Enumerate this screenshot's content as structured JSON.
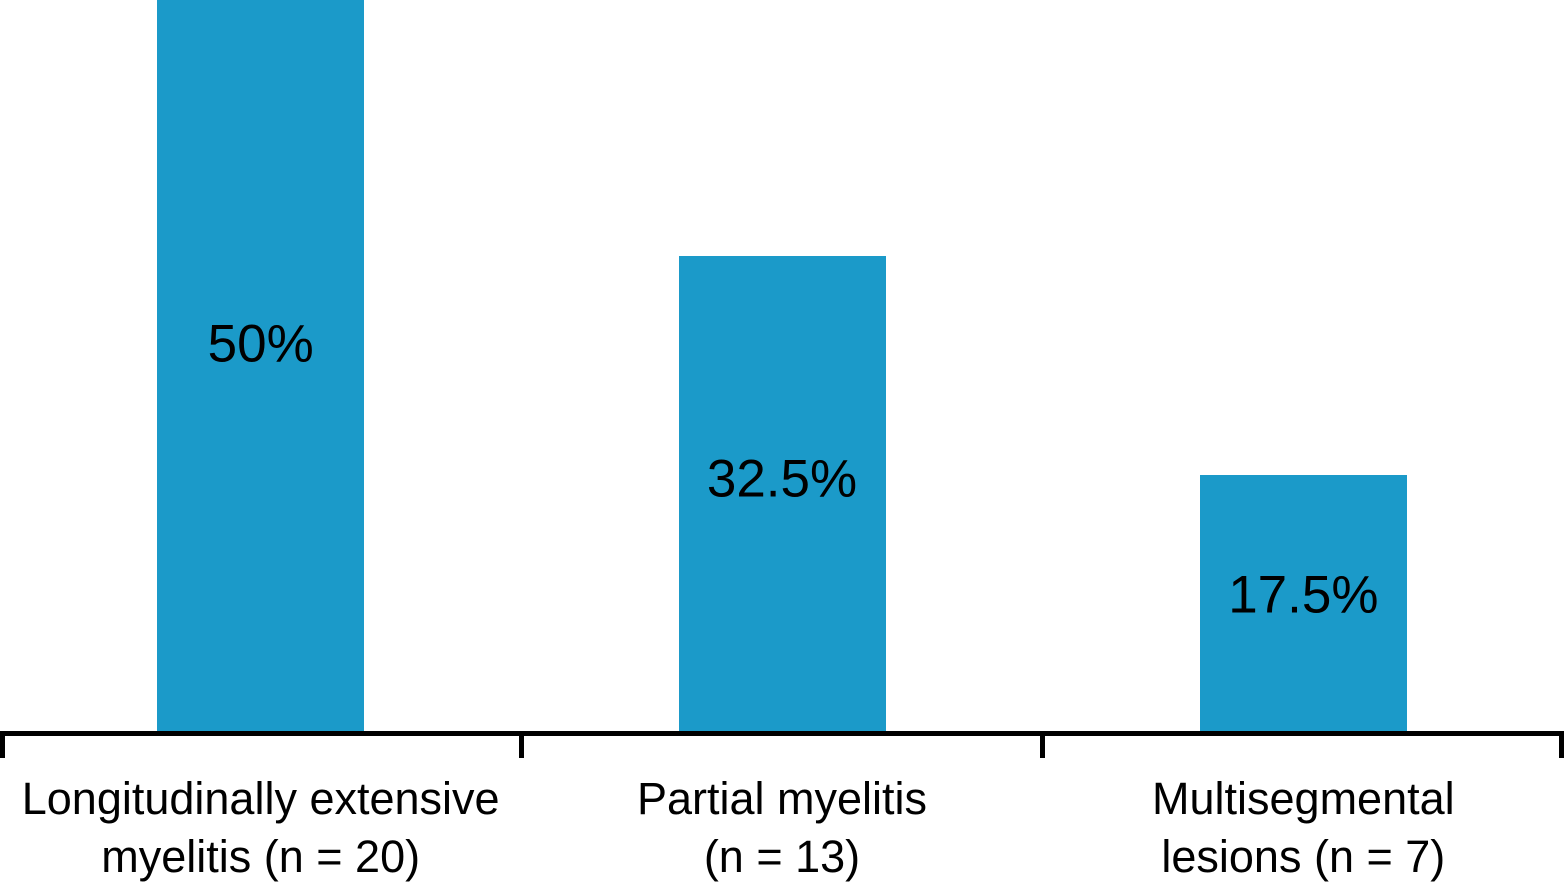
{
  "chart_data": {
    "type": "bar",
    "title": "",
    "xlabel": "",
    "ylabel": "",
    "categories": [
      "Longitudinally extensive\nmyelitis (n = 20)",
      "Partial myelitis\n(n = 13)",
      "Multisegmental\nlesions (n = 7)"
    ],
    "values": [
      50,
      32.5,
      17.5
    ],
    "value_labels": [
      "50%",
      "32.5%",
      "17.5%"
    ],
    "counts": [
      20,
      13,
      7
    ],
    "ylim": [
      0,
      50
    ],
    "grid": false,
    "legend": false,
    "bar_color": "#1b9ac9",
    "axis_color": "#000000",
    "text_color": "#000000",
    "background_color": "#ffffff"
  }
}
